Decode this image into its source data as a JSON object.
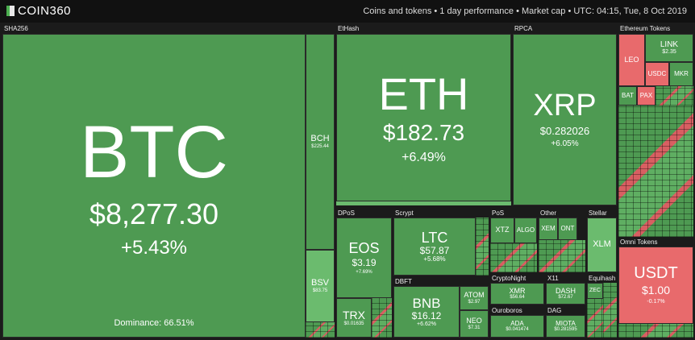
{
  "header": {
    "logo": "COIN360",
    "info": "Coins and tokens • 1 day performance • Market cap • UTC: 04:15, Tue, 8 Oct 2019"
  },
  "groups": [
    {
      "label": "SHA256",
      "tiles": [
        {
          "symbol": "BTC",
          "price": "$8,277.30",
          "change": "+5.43%"
        },
        {
          "symbol": "BCH",
          "price": "$225.44"
        },
        {
          "symbol": "BSV",
          "price": "$83.75"
        }
      ],
      "dominance": "Dominance: 66.51%"
    },
    {
      "label": "EtHash",
      "tiles": [
        {
          "symbol": "ETH",
          "price": "$182.73",
          "change": "+6.49%"
        }
      ]
    },
    {
      "label": "RPCA",
      "tiles": [
        {
          "symbol": "XRP",
          "price": "$0.282026",
          "change": "+6.05%"
        }
      ]
    },
    {
      "label": "Ethereum Tokens",
      "tiles": [
        {
          "symbol": "LEO"
        },
        {
          "symbol": "LINK",
          "price": "$2.35"
        },
        {
          "symbol": "USDC"
        },
        {
          "symbol": "MKR"
        },
        {
          "symbol": "BAT"
        },
        {
          "symbol": "PAX"
        }
      ]
    },
    {
      "label": "DPoS",
      "tiles": [
        {
          "symbol": "EOS",
          "price": "$3.19",
          "change": "+7.69%"
        },
        {
          "symbol": "TRX",
          "price": "$0.01635"
        }
      ]
    },
    {
      "label": "Scrypt",
      "tiles": [
        {
          "symbol": "LTC",
          "price": "$57.87",
          "change": "+5.68%"
        }
      ]
    },
    {
      "label": "DBFT",
      "tiles": [
        {
          "symbol": "BNB",
          "price": "$16.12",
          "change": "+6.62%"
        },
        {
          "symbol": "ATOM",
          "price": "$2.97"
        },
        {
          "symbol": "NEO",
          "price": "$7.31"
        }
      ]
    },
    {
      "label": "PoS",
      "tiles": [
        {
          "symbol": "XTZ"
        },
        {
          "symbol": "ALGO"
        }
      ]
    },
    {
      "label": "Other",
      "tiles": [
        {
          "symbol": "XEM"
        },
        {
          "symbol": "ONT"
        }
      ]
    },
    {
      "label": "Stellar",
      "tiles": [
        {
          "symbol": "XLM"
        }
      ]
    },
    {
      "label": "CryptoNight",
      "tiles": [
        {
          "symbol": "XMR",
          "price": "$56.64"
        }
      ]
    },
    {
      "label": "X11",
      "tiles": [
        {
          "symbol": "DASH",
          "price": "$72.67"
        }
      ]
    },
    {
      "label": "Equihash",
      "tiles": [
        {
          "symbol": "ZEC"
        }
      ]
    },
    {
      "label": "Ouroboros",
      "tiles": [
        {
          "symbol": "ADA",
          "price": "$0.041474"
        }
      ]
    },
    {
      "label": "DAG",
      "tiles": [
        {
          "symbol": "MIOTA",
          "price": "$0.281595"
        }
      ]
    },
    {
      "label": "Omni Tokens",
      "tiles": [
        {
          "symbol": "USDT",
          "price": "$1.00",
          "change": "-0.17%"
        }
      ]
    }
  ]
}
